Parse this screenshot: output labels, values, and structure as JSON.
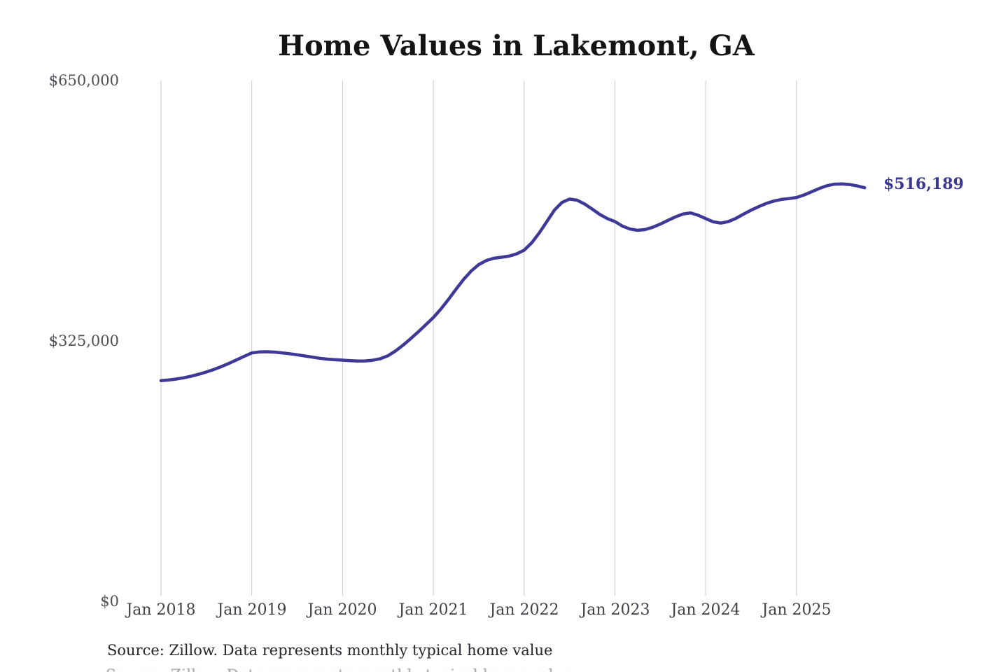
{
  "header": {
    "title": "Home Values in Lakemont, GA"
  },
  "footer": {
    "source_note": "Source: Zillow. Data represents monthly typical home value"
  },
  "colors": {
    "line": "#3e3996",
    "annotation": "#3b3794",
    "gridline": "#c9c9c9",
    "axis_text": "#4e4e55",
    "title_text": "#141414"
  },
  "chart_data": {
    "type": "line",
    "title": "Home Values in Lakemont, GA",
    "xlabel": "",
    "ylabel": "",
    "x_start": "2018-01",
    "x_end": "2025-10",
    "x_interval": "monthly",
    "x_tick_labels": [
      "Jan 2018",
      "Jan 2019",
      "Jan 2020",
      "Jan 2021",
      "Jan 2022",
      "Jan 2023",
      "Jan 2024",
      "Jan 2025"
    ],
    "y_ticks": [
      0,
      325000,
      650000
    ],
    "y_tick_labels": [
      "$0",
      "$325,000",
      "$650,000"
    ],
    "ylim": [
      0,
      650000
    ],
    "grid": "vertical-only",
    "legend": "none",
    "annotation": {
      "text": "$516,189",
      "value": 516189,
      "position": "line-end"
    },
    "series": [
      {
        "name": "Typical home value",
        "color": "#3e3996",
        "values": [
          275500,
          276200,
          277400,
          279000,
          281000,
          283400,
          286200,
          289400,
          293000,
          297000,
          301300,
          305800,
          310000,
          311200,
          311500,
          311000,
          310100,
          309000,
          307700,
          306200,
          304700,
          303300,
          302200,
          301500,
          301000,
          300400,
          299900,
          300000,
          300900,
          302800,
          306500,
          312500,
          319800,
          327800,
          336300,
          345200,
          354200,
          364800,
          376800,
          389600,
          401800,
          412200,
          420200,
          425400,
          428200,
          429400,
          430800,
          433600,
          438200,
          447400,
          459800,
          474000,
          488200,
          497800,
          502000,
          500600,
          495800,
          489400,
          482800,
          477600,
          474000,
          468200,
          464600,
          463000,
          464000,
          466800,
          470800,
          475400,
          479800,
          483400,
          484800,
          481800,
          477600,
          473600,
          472000,
          474000,
          478000,
          483200,
          488200,
          492600,
          496600,
          499600,
          501600,
          502600,
          504000,
          507200,
          511200,
          515200,
          518600,
          520600,
          521000,
          520200,
          518400,
          516189
        ]
      }
    ]
  }
}
